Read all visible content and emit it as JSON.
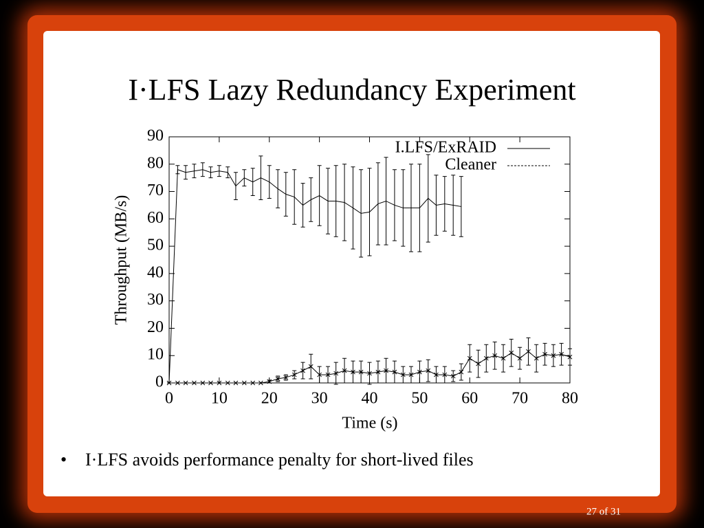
{
  "slide_title": "I·LFS Lazy Redundancy Experiment",
  "bullet": "I·LFS avoids performance penalty for short-lived files",
  "footer": "27 of 31",
  "chart_data": {
    "type": "line",
    "xlabel": "Time (s)",
    "ylabel": "Throughput (MB/s)",
    "x": [
      0,
      1.7,
      3.3,
      5,
      6.7,
      8.3,
      10,
      11.7,
      13.3,
      15,
      16.7,
      18.3,
      20,
      21.7,
      23.3,
      25,
      26.7,
      28.3,
      30,
      31.7,
      33.3,
      35,
      36.7,
      38.3,
      40,
      41.7,
      43.3,
      45,
      46.7,
      48.3,
      50,
      51.7,
      53.3,
      55,
      56.7,
      58.3,
      60,
      61.7,
      63.3,
      65,
      66.7,
      68.3,
      70,
      71.7,
      73.3,
      75,
      76.7,
      78.3,
      80
    ],
    "series": [
      {
        "name": "I.LFS/ExRAID",
        "color": "#000000",
        "dash": false,
        "marker": false,
        "values": [
          0,
          78,
          77,
          77.5,
          78,
          77,
          77.5,
          77,
          72,
          75,
          73.5,
          75,
          73.5,
          71,
          69,
          68,
          65,
          67,
          68.5,
          66.5,
          66.5,
          66,
          64,
          62,
          62.5,
          65.5,
          66.5,
          65,
          64,
          64,
          64,
          67.5,
          65,
          65.5,
          65,
          64.5,
          null,
          null,
          null,
          null,
          null,
          null,
          null,
          null,
          null,
          null,
          null,
          null,
          null
        ],
        "errors": [
          0,
          1.5,
          2.5,
          2.5,
          2.5,
          2,
          2,
          2,
          5,
          3,
          5,
          8,
          6,
          7,
          8,
          10,
          8,
          8,
          11,
          12,
          13,
          14,
          15,
          16,
          16,
          15,
          16,
          13,
          14,
          16,
          16,
          16,
          11,
          10,
          11,
          11,
          null,
          null,
          null,
          null,
          null,
          null,
          null,
          null,
          null,
          null,
          null,
          null,
          null
        ]
      },
      {
        "name": "Cleaner",
        "color": "#000000",
        "dash": true,
        "marker": true,
        "values": [
          0,
          0,
          0,
          0,
          0,
          0,
          0,
          0,
          0,
          0,
          0,
          0,
          0.5,
          1.5,
          2,
          3,
          4.5,
          6,
          3,
          3,
          3.5,
          4.5,
          4,
          4,
          3.5,
          4,
          4.5,
          4,
          3,
          3,
          4,
          4.5,
          3,
          3,
          2.5,
          4,
          9,
          7,
          9,
          10,
          9,
          11,
          9,
          11.5,
          9,
          10.5,
          10,
          10.5,
          9.5
        ],
        "errors": [
          0,
          0,
          0,
          0,
          0,
          0,
          0,
          0,
          0,
          0,
          0,
          0,
          0.5,
          1,
          1,
          1.5,
          3,
          4.5,
          3,
          3,
          4,
          4.5,
          4,
          4,
          4,
          4,
          4.5,
          4,
          3,
          3,
          4,
          4,
          3,
          3,
          2,
          3,
          5,
          5,
          5,
          5,
          5,
          5,
          4,
          5,
          5,
          4,
          4,
          4,
          3
        ]
      }
    ],
    "xlim": [
      0,
      80
    ],
    "xticks": [
      0,
      10,
      20,
      30,
      40,
      50,
      60,
      70,
      80
    ],
    "ylim": [
      0,
      90
    ],
    "yticks": [
      0,
      10,
      20,
      30,
      40,
      50,
      60,
      70,
      80,
      90
    ],
    "legend": "upper right",
    "grid": false
  }
}
